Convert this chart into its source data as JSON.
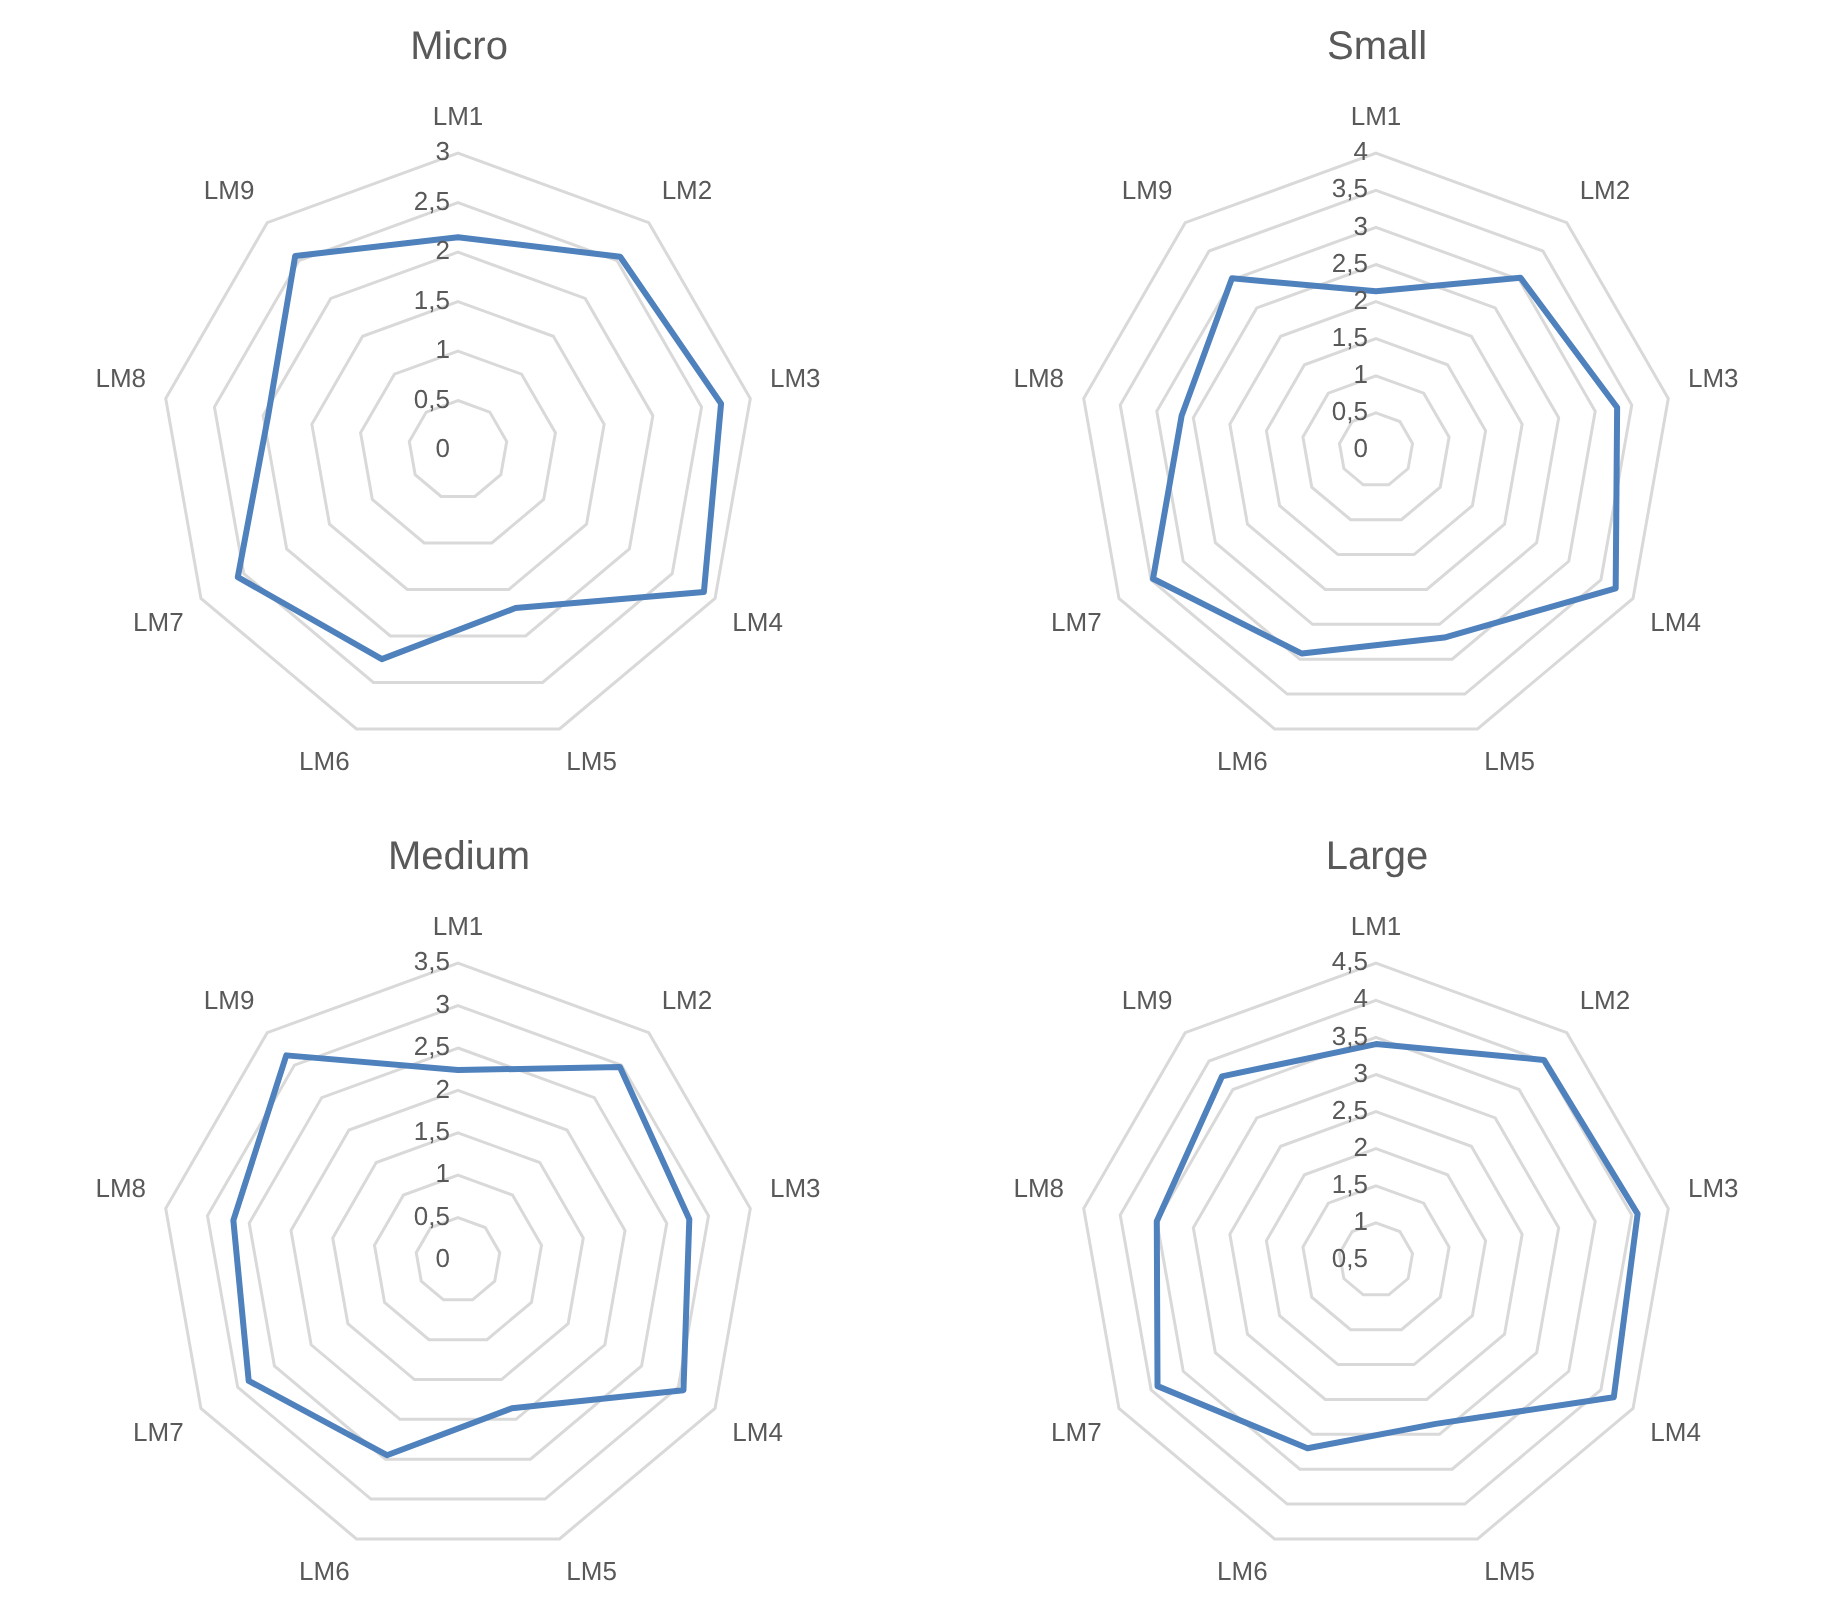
{
  "chart_data": [
    {
      "type": "radar",
      "title": "Micro",
      "categories": [
        "LM1",
        "LM2",
        "LM3",
        "LM4",
        "LM5",
        "LM6",
        "LM7",
        "LM8",
        "LM9"
      ],
      "series": [
        {
          "color": "#4f81bd",
          "values": [
            2.15,
            2.55,
            2.7,
            2.87,
            1.7,
            2.25,
            2.57,
            1.95,
            2.56
          ]
        }
      ],
      "ylim": [
        0,
        3
      ],
      "yticks": [
        0,
        {
          "value": 0.5,
          "label": "0,5"
        },
        1,
        {
          "value": 1.5,
          "label": "1,5"
        },
        2,
        {
          "value": 2.5,
          "label": "2,5"
        },
        3
      ],
      "grid": true,
      "legend": false,
      "marker": "none"
    },
    {
      "type": "radar",
      "title": "Small",
      "categories": [
        "LM1",
        "LM2",
        "LM3",
        "LM4",
        "LM5",
        "LM6",
        "LM7",
        "LM8",
        "LM9"
      ],
      "series": [
        {
          "color": "#4f81bd",
          "values": [
            2.14,
            3.03,
            3.3,
            3.73,
            2.69,
            2.92,
            3.47,
            2.66,
            3.02
          ]
        }
      ],
      "ylim": [
        0,
        4
      ],
      "yticks": [
        0,
        {
          "value": 0.5,
          "label": "0,5"
        },
        1,
        {
          "value": 1.5,
          "label": "1,5"
        },
        2,
        {
          "value": 2.5,
          "label": "2,5"
        },
        3,
        {
          "value": 3.5,
          "label": "3,5"
        },
        4
      ],
      "grid": true,
      "legend": false,
      "marker": "none"
    },
    {
      "type": "radar",
      "title": "Medium",
      "categories": [
        "LM1",
        "LM2",
        "LM3",
        "LM4",
        "LM5",
        "LM6",
        "LM7",
        "LM8",
        "LM9"
      ],
      "series": [
        {
          "color": "#4f81bd",
          "values": [
            2.24,
            2.97,
            2.77,
            3.07,
            1.86,
            2.45,
            2.85,
            2.69,
            3.15
          ]
        }
      ],
      "ylim": [
        0,
        3.5
      ],
      "yticks": [
        0,
        {
          "value": 0.5,
          "label": "0,5"
        },
        1,
        {
          "value": 1.5,
          "label": "1,5"
        },
        2,
        {
          "value": 2.5,
          "label": "2,5"
        },
        3,
        {
          "value": 3.5,
          "label": "3,5"
        }
      ],
      "grid": true,
      "legend": false,
      "marker": "none"
    },
    {
      "type": "radar",
      "title": "Large",
      "categories": [
        "LM1",
        "LM2",
        "LM3",
        "LM4",
        "LM5",
        "LM6",
        "LM7",
        "LM8",
        "LM9"
      ],
      "series": [
        {
          "color": "#4f81bd",
          "values": [
            3.41,
            4.02,
            4.08,
            4.2,
            2.85,
            3.2,
            3.9,
            3.5,
            3.73
          ]
        }
      ],
      "ylim": [
        0.5,
        4.5
      ],
      "yticks": [
        {
          "value": 0.5,
          "label": "0,5"
        },
        1,
        {
          "value": 1.5,
          "label": "1,5"
        },
        2,
        {
          "value": 2.5,
          "label": "2,5"
        },
        3,
        {
          "value": 3.5,
          "label": "3,5"
        },
        4,
        {
          "value": 4.5,
          "label": "4,5"
        }
      ],
      "grid": true,
      "legend": false,
      "marker": "none"
    }
  ]
}
